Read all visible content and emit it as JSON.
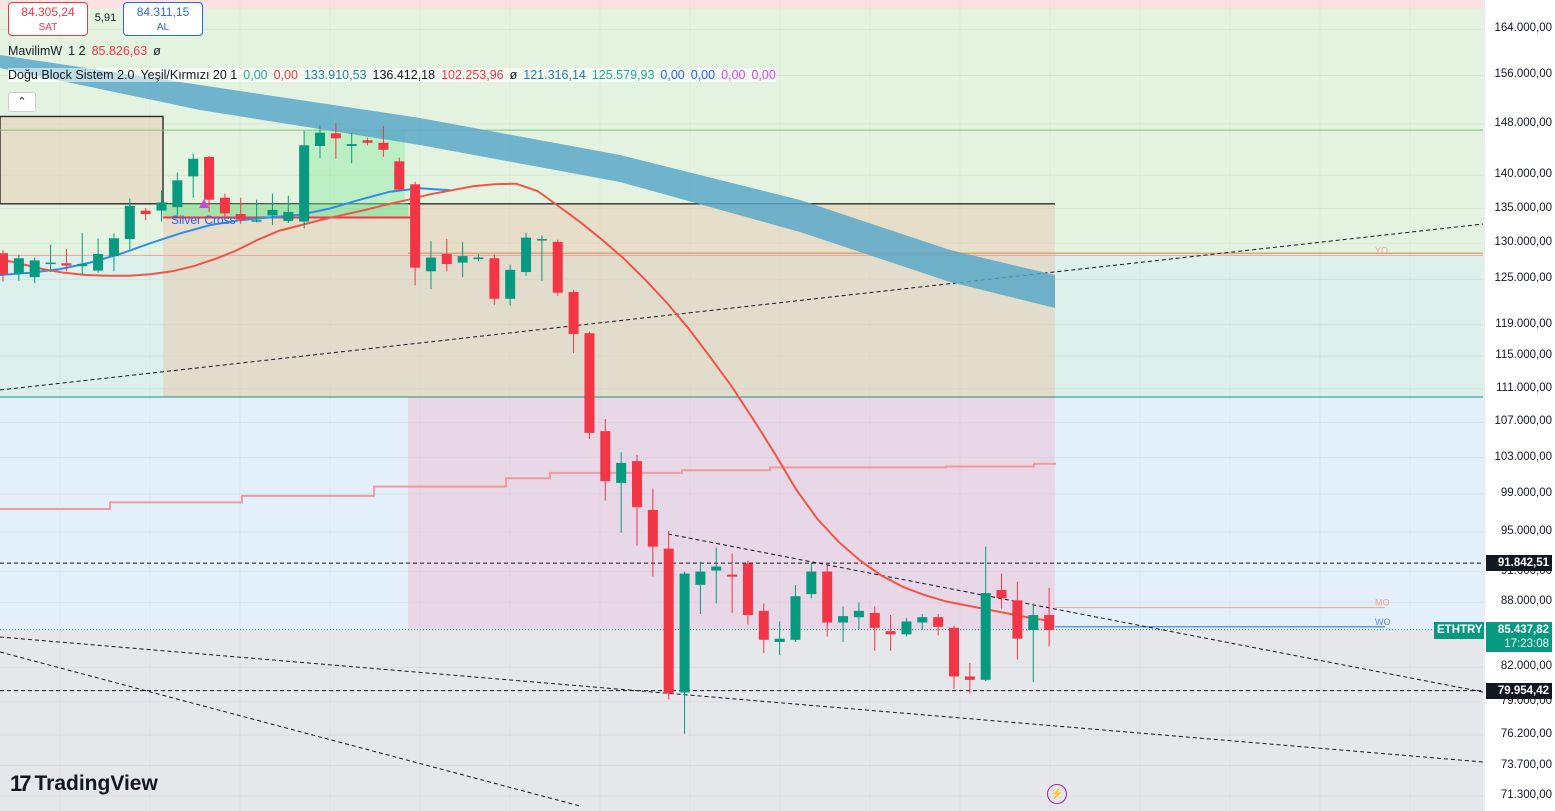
{
  "header": {
    "sell": {
      "price": "84.305,24",
      "label": "SAT"
    },
    "spread": "5,91",
    "buy": {
      "price": "84.311,15",
      "label": "AL"
    },
    "collapse_icon": "chevron-up-icon"
  },
  "indicators": [
    {
      "name": "MavilimW",
      "params": "1 2",
      "values": [
        {
          "text": "85.826,63",
          "color": "#f23645"
        },
        {
          "text": "ø",
          "color": "#131722"
        }
      ]
    },
    {
      "name": "Doğu Block Sistem 2.0",
      "params": "Yeşil/Kırmızı 20 1",
      "values": [
        {
          "text": "0,00",
          "color": "#26a69a"
        },
        {
          "text": "0,00",
          "color": "#f23645"
        },
        {
          "text": "133.910,53",
          "color": "#2a7ab0"
        },
        {
          "text": "136.412,18",
          "color": "#131722"
        },
        {
          "text": "102.253,96",
          "color": "#f23645"
        },
        {
          "text": "ø",
          "color": "#131722"
        },
        {
          "text": "121.316,14",
          "color": "#2a7ab0"
        },
        {
          "text": "125.579,93",
          "color": "#26a69a"
        },
        {
          "text": "0,00",
          "color": "#2962ff"
        },
        {
          "text": "0,00",
          "color": "#2962ff"
        },
        {
          "text": "0,00",
          "color": "#e040fb"
        },
        {
          "text": "0,00",
          "color": "#e040fb"
        }
      ]
    }
  ],
  "branding": {
    "logo_mark": "17",
    "logo_text": "TradingView"
  },
  "chart_data": {
    "type": "candlestick",
    "symbol": "ETHTRY",
    "last_price": "85.437,82",
    "countdown": "17:23:08",
    "level_labels": [
      {
        "text": "91.842,51",
        "value": 91842.51
      },
      {
        "text": "79.954,42",
        "value": 79954.42
      }
    ],
    "y_axis_ticks": [
      {
        "text": "164.000,00",
        "value": 164000
      },
      {
        "text": "156.000,00",
        "value": 156000
      },
      {
        "text": "148.000,00",
        "value": 148000
      },
      {
        "text": "140.000,00",
        "value": 140000
      },
      {
        "text": "135.000,00",
        "value": 135000
      },
      {
        "text": "130.000,00",
        "value": 130000
      },
      {
        "text": "125.000,00",
        "value": 125000
      },
      {
        "text": "119.000,00",
        "value": 119000
      },
      {
        "text": "115.000,00",
        "value": 115000
      },
      {
        "text": "111.000,00",
        "value": 111000
      },
      {
        "text": "107.000,00",
        "value": 107000
      },
      {
        "text": "103.000,00",
        "value": 103000
      },
      {
        "text": "99.000,00",
        "value": 99000
      },
      {
        "text": "95.000,00",
        "value": 95000
      },
      {
        "text": "91.000,00",
        "value": 91000
      },
      {
        "text": "88.000,00",
        "value": 88000
      },
      {
        "text": "82.000,00",
        "value": 82000
      },
      {
        "text": "79.000,00",
        "value": 79000
      },
      {
        "text": "76.200,00",
        "value": 76200
      },
      {
        "text": "73.700,00",
        "value": 73700
      },
      {
        "text": "71.300,00",
        "value": 71300
      }
    ],
    "y_scale": "log",
    "y_range": [
      71000,
      167500
    ],
    "zone_labels": [
      {
        "text": "YO",
        "value": 128300,
        "color": "#f7a3a3"
      },
      {
        "text": "MO",
        "value": 87500,
        "color": "#f2a47e"
      },
      {
        "text": "WO",
        "value": 85700,
        "color": "#5b8fd6"
      }
    ],
    "annotation": {
      "text": "Silver Cross",
      "color": "#2962ff"
    },
    "candles": [
      {
        "o": 128600,
        "h": 129000,
        "l": 124700,
        "c": 125700
      },
      {
        "o": 125800,
        "h": 128400,
        "l": 124800,
        "c": 127900
      },
      {
        "o": 125300,
        "h": 128000,
        "l": 124500,
        "c": 127600
      },
      {
        "o": 127300,
        "h": 129800,
        "l": 126000,
        "c": 127300
      },
      {
        "o": 127200,
        "h": 129200,
        "l": 126100,
        "c": 126900
      },
      {
        "o": 126800,
        "h": 131500,
        "l": 125700,
        "c": 127100
      },
      {
        "o": 126200,
        "h": 130700,
        "l": 125900,
        "c": 128500
      },
      {
        "o": 128200,
        "h": 131400,
        "l": 126100,
        "c": 130700
      },
      {
        "o": 130600,
        "h": 136500,
        "l": 129200,
        "c": 135400
      },
      {
        "o": 134700,
        "h": 135100,
        "l": 133300,
        "c": 134200
      },
      {
        "o": 134700,
        "h": 137700,
        "l": 133100,
        "c": 135900
      },
      {
        "o": 135200,
        "h": 140400,
        "l": 133600,
        "c": 139200
      },
      {
        "o": 139800,
        "h": 143300,
        "l": 136600,
        "c": 142500
      },
      {
        "o": 142800,
        "h": 142900,
        "l": 134500,
        "c": 136300
      },
      {
        "o": 136600,
        "h": 137200,
        "l": 133800,
        "c": 134300
      },
      {
        "o": 134200,
        "h": 136600,
        "l": 132800,
        "c": 133400
      },
      {
        "o": 133300,
        "h": 136300,
        "l": 133000,
        "c": 133300
      },
      {
        "o": 134000,
        "h": 137200,
        "l": 132600,
        "c": 134800
      },
      {
        "o": 133200,
        "h": 136900,
        "l": 132900,
        "c": 134500
      },
      {
        "o": 133100,
        "h": 146900,
        "l": 132100,
        "c": 144600
      },
      {
        "o": 144500,
        "h": 147800,
        "l": 142600,
        "c": 146600
      },
      {
        "o": 146500,
        "h": 148100,
        "l": 142500,
        "c": 145700
      },
      {
        "o": 144500,
        "h": 146600,
        "l": 141800,
        "c": 144800
      },
      {
        "o": 145400,
        "h": 145800,
        "l": 144600,
        "c": 145000
      },
      {
        "o": 145000,
        "h": 147700,
        "l": 142800,
        "c": 143900
      },
      {
        "o": 142100,
        "h": 142700,
        "l": 137800,
        "c": 137800
      },
      {
        "o": 138600,
        "h": 139000,
        "l": 124200,
        "c": 126600
      },
      {
        "o": 126100,
        "h": 130300,
        "l": 123700,
        "c": 128000
      },
      {
        "o": 128500,
        "h": 130600,
        "l": 126100,
        "c": 127100
      },
      {
        "o": 127300,
        "h": 130200,
        "l": 125300,
        "c": 128200
      },
      {
        "o": 127800,
        "h": 128500,
        "l": 127500,
        "c": 128000
      },
      {
        "o": 127900,
        "h": 128400,
        "l": 121600,
        "c": 122400
      },
      {
        "o": 122400,
        "h": 127000,
        "l": 121500,
        "c": 126300
      },
      {
        "o": 126000,
        "h": 131500,
        "l": 125500,
        "c": 130800
      },
      {
        "o": 130600,
        "h": 131100,
        "l": 124800,
        "c": 130600
      },
      {
        "o": 130200,
        "h": 130500,
        "l": 122800,
        "c": 123200
      },
      {
        "o": 123300,
        "h": 123600,
        "l": 115400,
        "c": 117800
      },
      {
        "o": 117900,
        "h": 118100,
        "l": 105100,
        "c": 105800
      },
      {
        "o": 106000,
        "h": 107400,
        "l": 98300,
        "c": 100400
      },
      {
        "o": 100200,
        "h": 103600,
        "l": 94900,
        "c": 102400
      },
      {
        "o": 102600,
        "h": 103300,
        "l": 93600,
        "c": 97600
      },
      {
        "o": 97300,
        "h": 99600,
        "l": 90500,
        "c": 93500
      },
      {
        "o": 93300,
        "h": 95100,
        "l": 79200,
        "c": 79700
      },
      {
        "o": 79800,
        "h": 91000,
        "l": 76300,
        "c": 90800
      },
      {
        "o": 89700,
        "h": 92000,
        "l": 86900,
        "c": 91000
      },
      {
        "o": 91100,
        "h": 93400,
        "l": 87900,
        "c": 91500
      },
      {
        "o": 90700,
        "h": 92800,
        "l": 87000,
        "c": 90500
      },
      {
        "o": 91800,
        "h": 92100,
        "l": 85900,
        "c": 86800
      },
      {
        "o": 87200,
        "h": 87900,
        "l": 83300,
        "c": 84500
      },
      {
        "o": 84300,
        "h": 86200,
        "l": 83100,
        "c": 84600
      },
      {
        "o": 84500,
        "h": 89700,
        "l": 84300,
        "c": 88600
      },
      {
        "o": 88800,
        "h": 91900,
        "l": 88400,
        "c": 91000
      },
      {
        "o": 91000,
        "h": 91600,
        "l": 84800,
        "c": 86100
      },
      {
        "o": 86100,
        "h": 87600,
        "l": 84300,
        "c": 86700
      },
      {
        "o": 86600,
        "h": 88000,
        "l": 85500,
        "c": 87200
      },
      {
        "o": 87000,
        "h": 87600,
        "l": 83500,
        "c": 85600
      },
      {
        "o": 85300,
        "h": 86800,
        "l": 83500,
        "c": 85000
      },
      {
        "o": 85000,
        "h": 86500,
        "l": 84800,
        "c": 86200
      },
      {
        "o": 86100,
        "h": 86900,
        "l": 85400,
        "c": 86600
      },
      {
        "o": 86600,
        "h": 86900,
        "l": 84900,
        "c": 85700
      },
      {
        "o": 85600,
        "h": 85800,
        "l": 80100,
        "c": 81200
      },
      {
        "o": 81200,
        "h": 82400,
        "l": 79700,
        "c": 80900
      },
      {
        "o": 80900,
        "h": 93500,
        "l": 80800,
        "c": 88900
      },
      {
        "o": 89200,
        "h": 90800,
        "l": 87400,
        "c": 88400
      },
      {
        "o": 88200,
        "h": 90000,
        "l": 82700,
        "c": 84600
      },
      {
        "o": 85400,
        "h": 87900,
        "l": 80700,
        "c": 86800
      },
      {
        "o": 86800,
        "h": 89400,
        "l": 83900,
        "c": 85400
      }
    ],
    "mavilimw_line": [
      127800,
      127100,
      126400,
      125900,
      125600,
      125500,
      125500,
      125700,
      126100,
      126800,
      127800,
      129000,
      130500,
      131800,
      132600,
      133400,
      134100,
      134800,
      135600,
      136300,
      137100,
      137700,
      138300,
      138600,
      138700,
      137600,
      135300,
      133000,
      130500,
      127900,
      125000,
      121900,
      118600,
      115000,
      111400,
      107500,
      103600,
      99600,
      96400,
      94000,
      92100,
      90600,
      89500,
      88700,
      88100,
      87700,
      87300,
      86900,
      86500,
      86200
    ],
    "ma_line": [
      97400,
      97400,
      97400,
      97400,
      97400,
      98100,
      98100,
      98100,
      98100,
      98100,
      98100,
      98800,
      98800,
      98800,
      98800,
      98800,
      98800,
      99800,
      99800,
      99800,
      99800,
      99800,
      99800,
      100700,
      100700,
      101300,
      101300,
      101300,
      101300,
      101300,
      101300,
      101600,
      101600,
      101600,
      101600,
      101900,
      101900,
      101900,
      101900,
      101900,
      101900,
      101900,
      101900,
      102000,
      102000,
      102000,
      102000,
      102300
    ],
    "blue_cross_line": [
      125600,
      125900,
      126400,
      127300,
      128500,
      130000,
      131400,
      132600,
      133300,
      133700,
      134100,
      135000,
      136300,
      137500,
      138000,
      137700
    ]
  },
  "colors": {
    "up": "#089981",
    "down": "#f23645",
    "band": "#5aa8c8",
    "mavilimw": "#f05545",
    "ma": "#f39a9a",
    "cross_line": "#2f8df0",
    "zone_green": "#e4f3e0",
    "zone_teal": "#dcf0ec",
    "zone_blue": "#e3f0fb",
    "zone_grey": "#e6e7ea",
    "symbol_tag": "#089981"
  },
  "axis": {
    "bolt_icon": "lightning-icon"
  }
}
